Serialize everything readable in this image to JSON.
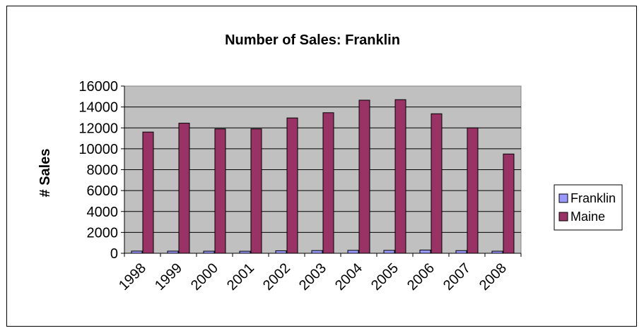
{
  "chart_data": {
    "type": "bar",
    "title": "Number of Sales: Franklin",
    "ylabel": "# Sales",
    "xlabel": "",
    "categories": [
      "1998",
      "1999",
      "2000",
      "2001",
      "2002",
      "2003",
      "2004",
      "2005",
      "2006",
      "2007",
      "2008"
    ],
    "series": [
      {
        "name": "Franklin",
        "values": [
          210,
          205,
          200,
          195,
          240,
          260,
          280,
          280,
          310,
          255,
          200
        ]
      },
      {
        "name": "Maine",
        "values": [
          11600,
          12450,
          11900,
          11900,
          12950,
          13450,
          14650,
          14700,
          13350,
          12000,
          9500
        ]
      }
    ],
    "ylim": [
      0,
      16000
    ],
    "yticks": [
      "0",
      "2000",
      "4000",
      "6000",
      "8000",
      "10000",
      "12000",
      "14000",
      "16000"
    ],
    "grid": true,
    "legend": "right",
    "colors": {
      "Franklin": "#9999ff",
      "Maine": "#993366",
      "plot_bg": "#c0c0c0"
    }
  }
}
